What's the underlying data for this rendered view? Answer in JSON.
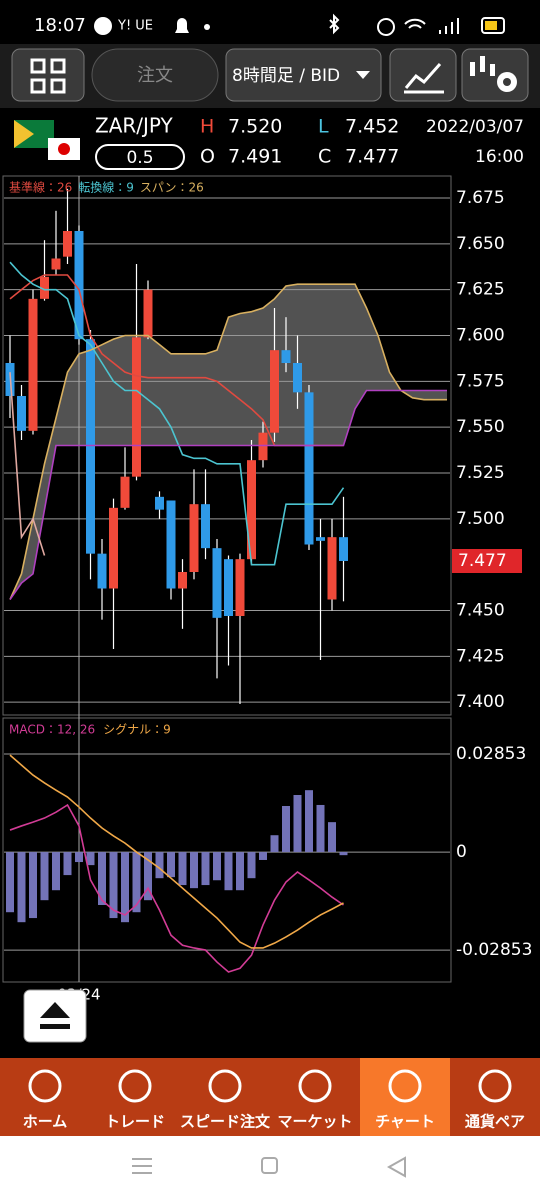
{
  "status_bar": {
    "time": "18:07",
    "carrier": "Y! UE"
  },
  "toolbar": {
    "order": "注文",
    "timeframe": "8時間足 / BID"
  },
  "quote": {
    "pair": "ZAR/JPY",
    "high_label": "H",
    "high": "7.520",
    "low_label": "L",
    "low": "7.452",
    "date": "2022/03/07",
    "lot": "0.5",
    "open_label": "O",
    "open": "7.491",
    "close_label": "C",
    "close": "7.477",
    "time": "16:00"
  },
  "chart_data": [
    {
      "type": "candlestick",
      "up_color": "#f04a3a",
      "down_color": "#2f9ae8",
      "date_label": "03/24",
      "date_index": 6,
      "open": [
        7.585,
        7.567,
        7.548,
        7.62,
        7.636,
        7.643,
        7.657,
        7.598,
        7.481,
        7.462,
        7.506,
        7.523,
        7.599,
        7.512,
        7.51,
        7.462,
        7.471,
        7.508,
        7.484,
        7.478,
        7.447,
        7.478,
        7.532,
        7.547,
        7.592,
        7.585,
        7.569,
        7.49,
        7.456,
        7.49
      ],
      "high": [
        7.6,
        7.573,
        7.625,
        7.652,
        7.668,
        7.68,
        7.66,
        7.603,
        7.489,
        7.511,
        7.539,
        7.639,
        7.63,
        7.515,
        7.51,
        7.478,
        7.527,
        7.527,
        7.489,
        7.48,
        7.481,
        7.543,
        7.553,
        7.615,
        7.61,
        7.6,
        7.573,
        7.5,
        7.5,
        7.512
      ],
      "low": [
        7.555,
        7.543,
        7.546,
        7.619,
        7.633,
        7.639,
        7.595,
        7.467,
        7.445,
        7.429,
        7.505,
        7.521,
        7.598,
        7.5,
        7.456,
        7.44,
        7.467,
        7.478,
        7.413,
        7.42,
        7.399,
        7.475,
        7.528,
        7.542,
        7.58,
        7.56,
        7.483,
        7.423,
        7.45,
        7.455
      ],
      "close": [
        7.567,
        7.548,
        7.62,
        7.632,
        7.642,
        7.657,
        7.598,
        7.481,
        7.462,
        7.506,
        7.523,
        7.599,
        7.625,
        7.505,
        7.462,
        7.471,
        7.508,
        7.484,
        7.446,
        7.447,
        7.478,
        7.532,
        7.547,
        7.592,
        7.585,
        7.569,
        7.486,
        7.488,
        7.49,
        7.477
      ],
      "series": [
        {
          "name": "基準線：26",
          "color": "#e04a40",
          "values": [
            7.62,
            7.625,
            7.63,
            7.633,
            7.633,
            7.633,
            7.625,
            7.6,
            7.59,
            7.585,
            7.58,
            7.578,
            7.577,
            7.577,
            7.577,
            7.577,
            7.577,
            7.577,
            7.575,
            7.57,
            7.565,
            7.56,
            7.554,
            7.54,
            7.54,
            7.54,
            7.54,
            7.54,
            7.54,
            7.54
          ]
        },
        {
          "name": "転換線：9",
          "color": "#4cc4d0",
          "values": [
            7.64,
            7.633,
            7.628,
            7.625,
            7.625,
            7.62,
            7.6,
            7.595,
            7.585,
            7.575,
            7.57,
            7.57,
            7.565,
            7.56,
            7.55,
            7.535,
            7.533,
            7.533,
            7.53,
            7.53,
            7.53,
            7.475,
            7.475,
            7.475,
            7.508,
            7.508,
            7.508,
            7.508,
            7.508,
            7.517
          ]
        },
        {
          "name": "スパン：26",
          "color": "#d8b060",
          "values": [
            7.456,
            7.47,
            7.5,
            7.53,
            7.555,
            7.58,
            7.59,
            7.592,
            7.595,
            7.598,
            7.6,
            7.6,
            7.6,
            7.595,
            7.59,
            7.59,
            7.59,
            7.59,
            7.592,
            7.61,
            7.612,
            7.613,
            7.615,
            7.62,
            7.627,
            7.628,
            7.628,
            7.628,
            7.628,
            7.628,
            7.628,
            7.615,
            7.6,
            7.58,
            7.57,
            7.566,
            7.565,
            7.565,
            7.565
          ]
        },
        {
          "color": "#b040c0",
          "values": [
            7.456,
            7.465,
            7.47,
            7.505,
            7.54,
            7.54,
            7.54,
            7.54,
            7.54,
            7.54,
            7.54,
            7.54,
            7.54,
            7.54,
            7.54,
            7.54,
            7.54,
            7.54,
            7.54,
            7.54,
            7.54,
            7.54,
            7.54,
            7.54,
            7.54,
            7.54,
            7.54,
            7.54,
            7.54,
            7.54,
            7.56,
            7.57,
            7.57,
            7.57,
            7.57,
            7.57,
            7.57,
            7.57,
            7.57
          ]
        },
        {
          "color": "#e0a8a0",
          "values": [
            7.58,
            7.49,
            7.5,
            7.48
          ]
        }
      ],
      "ylim": [
        7.393,
        7.687
      ],
      "yticks": [
        7.675,
        {
          "value": 7.65,
          "label": "7.650"
        },
        7.625,
        {
          "value": 7.6,
          "label": "7.600"
        },
        7.575,
        {
          "value": 7.55,
          "label": "7.550"
        },
        7.525,
        {
          "value": 7.5,
          "label": "7.500"
        },
        {
          "value": 7.45,
          "label": "7.450"
        },
        7.425,
        {
          "value": 7.4,
          "label": "7.400"
        }
      ],
      "grid": true
    },
    {
      "type": "macd",
      "histogram": {
        "color": "#7373b8",
        "values": [
          -0.0175,
          -0.0204,
          -0.0192,
          -0.014,
          -0.0111,
          -0.0067,
          -0.0029,
          -0.0038,
          -0.0154,
          -0.0192,
          -0.0204,
          -0.0175,
          -0.014,
          -0.0076,
          -0.0073,
          -0.0096,
          -0.0105,
          -0.0096,
          -0.0082,
          -0.0111,
          -0.0111,
          -0.0076,
          -0.0023,
          0.0049,
          0.0134,
          0.0166,
          0.018,
          0.0137,
          0.0087,
          -0.0009
        ]
      },
      "series": [
        {
          "name": "MACD：12, 26",
          "color": "#d23c96",
          "values": [
            0.0064,
            0.0076,
            0.0087,
            0.0099,
            0.0116,
            0.0137,
            0.0076,
            -0.0081,
            -0.014,
            -0.0169,
            -0.0183,
            -0.0154,
            -0.0105,
            -0.0169,
            -0.0242,
            -0.0271,
            -0.0279,
            -0.0285,
            -0.032,
            -0.0349,
            -0.0338,
            -0.03,
            -0.0212,
            -0.014,
            -0.0087,
            -0.0058,
            -0.0081,
            -0.0105,
            -0.0131,
            -0.0154
          ]
        },
        {
          "name": "シグナル：9",
          "color": "#f0a848",
          "values": [
            0.0282,
            0.0253,
            0.0224,
            0.0201,
            0.018,
            0.016,
            0.0131,
            0.0099,
            0.007,
            0.0047,
            0.0026,
            0,
            -0.0023,
            -0.0047,
            -0.0076,
            -0.0105,
            -0.0134,
            -0.0163,
            -0.0192,
            -0.0227,
            -0.0262,
            -0.0279,
            -0.0279,
            -0.0265,
            -0.0247,
            -0.0227,
            -0.0204,
            -0.0183,
            -0.0166,
            -0.0148
          ]
        }
      ],
      "ylim": [
        -0.0378,
        0.039
      ],
      "yticks": [
        0.02853,
        0,
        -0.02853
      ],
      "grid": true
    }
  ],
  "nav": {
    "items": [
      "ホーム",
      "トレード",
      "スピード注文",
      "マーケット",
      "チャート",
      "通貨ペア"
    ],
    "active": 4
  }
}
